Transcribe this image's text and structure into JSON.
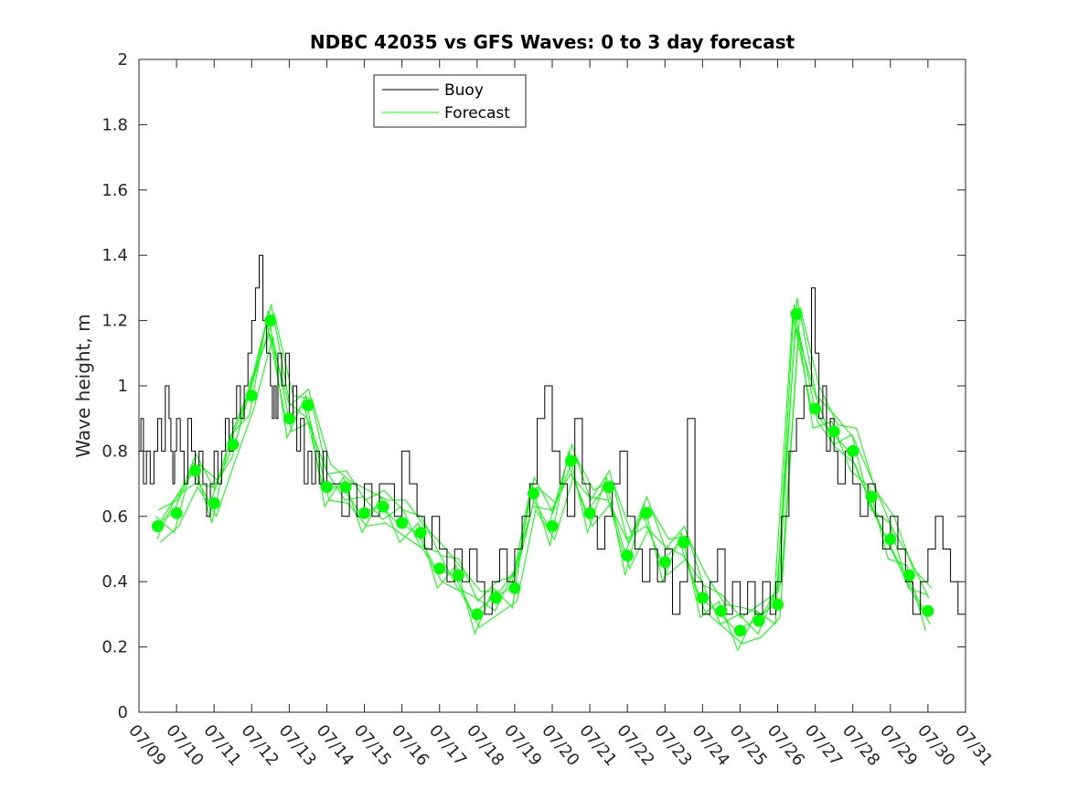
{
  "chart_data": {
    "type": "line",
    "title": "NDBC 42035 vs GFS Waves: 0 to 3 day forecast",
    "xlabel": "",
    "ylabel": "Wave height, m",
    "xlim": [
      0,
      22
    ],
    "ylim": [
      0,
      2
    ],
    "yticks": [
      0,
      0.2,
      0.4,
      0.6,
      0.8,
      1,
      1.2,
      1.4,
      1.6,
      1.8,
      2
    ],
    "ytick_labels": [
      "0",
      "0.2",
      "0.4",
      "0.6",
      "0.8",
      "1",
      "1.2",
      "1.4",
      "1.6",
      "1.8",
      "2"
    ],
    "xtick_labels": [
      "07/09",
      "07/10",
      "07/11",
      "07/12",
      "07/13",
      "07/14",
      "07/15",
      "07/16",
      "07/17",
      "07/18",
      "07/19",
      "07/20",
      "07/21",
      "07/22",
      "07/23",
      "07/24",
      "07/25",
      "07/26",
      "07/27",
      "07/28",
      "07/29",
      "07/30",
      "07/31"
    ],
    "grid": false,
    "legend_position": "top-left",
    "colors": {
      "buoy": "#000000",
      "forecast": "#00ff00"
    },
    "series": [
      {
        "name": "Buoy",
        "style": "stairs",
        "x": [
          0,
          0.05,
          0.12,
          0.2,
          0.3,
          0.4,
          0.5,
          0.6,
          0.7,
          0.8,
          0.85,
          0.9,
          0.95,
          1.0,
          1.1,
          1.2,
          1.3,
          1.4,
          1.5,
          1.6,
          1.7,
          1.8,
          1.9,
          2.0,
          2.1,
          2.2,
          2.3,
          2.4,
          2.5,
          2.6,
          2.7,
          2.8,
          2.9,
          3.0,
          3.1,
          3.2,
          3.3,
          3.4,
          3.5,
          3.55,
          3.6,
          3.65,
          3.7,
          3.8,
          3.9,
          4.0,
          4.1,
          4.2,
          4.3,
          4.4,
          4.5,
          4.6,
          4.7,
          4.8,
          4.9,
          5.0,
          5.2,
          5.4,
          5.6,
          5.8,
          6.0,
          6.2,
          6.4,
          6.6,
          6.8,
          7.0,
          7.2,
          7.4,
          7.6,
          7.8,
          8.0,
          8.2,
          8.4,
          8.6,
          8.8,
          9.0,
          9.2,
          9.4,
          9.6,
          9.8,
          10.0,
          10.2,
          10.4,
          10.6,
          10.8,
          11.0,
          11.2,
          11.4,
          11.6,
          11.8,
          12.0,
          12.2,
          12.4,
          12.6,
          12.8,
          13.0,
          13.2,
          13.4,
          13.6,
          13.8,
          14.0,
          14.2,
          14.4,
          14.6,
          14.8,
          15.0,
          15.2,
          15.4,
          15.6,
          15.8,
          16.0,
          16.2,
          16.4,
          16.6,
          16.8,
          16.95,
          17.1,
          17.3,
          17.5,
          17.7,
          17.9,
          18.0,
          18.1,
          18.2,
          18.3,
          18.4,
          18.5,
          18.6,
          18.8,
          19.0,
          19.2,
          19.4,
          19.6,
          19.8,
          20.0,
          20.2,
          20.4,
          20.6,
          20.8,
          21.0,
          21.2,
          21.4,
          21.6,
          21.8,
          22.0
        ],
        "values": [
          0.8,
          0.9,
          0.7,
          0.8,
          0.7,
          0.8,
          0.9,
          0.8,
          1.0,
          0.9,
          0.8,
          0.7,
          0.8,
          0.9,
          0.8,
          0.7,
          0.9,
          0.8,
          0.7,
          0.8,
          0.7,
          0.6,
          0.7,
          0.8,
          0.7,
          0.8,
          0.9,
          0.8,
          0.9,
          1.0,
          0.9,
          1.0,
          1.1,
          1.2,
          1.3,
          1.4,
          1.2,
          1.1,
          1.0,
          0.9,
          1.0,
          0.9,
          1.1,
          1.0,
          1.1,
          0.9,
          1.0,
          0.8,
          0.9,
          0.7,
          0.8,
          0.7,
          0.8,
          0.7,
          0.8,
          0.7,
          0.7,
          0.6,
          0.7,
          0.6,
          0.7,
          0.6,
          0.7,
          0.7,
          0.6,
          0.8,
          0.7,
          0.6,
          0.5,
          0.6,
          0.5,
          0.4,
          0.5,
          0.4,
          0.5,
          0.4,
          0.3,
          0.4,
          0.5,
          0.4,
          0.5,
          0.6,
          0.7,
          0.9,
          1.0,
          0.8,
          0.7,
          0.6,
          0.9,
          0.7,
          0.6,
          0.5,
          0.6,
          0.7,
          0.8,
          0.6,
          0.5,
          0.4,
          0.5,
          0.4,
          0.5,
          0.3,
          0.4,
          0.9,
          0.4,
          0.3,
          0.4,
          0.5,
          0.3,
          0.4,
          0.3,
          0.4,
          0.3,
          0.4,
          0.3,
          0.4,
          0.6,
          0.8,
          0.9,
          1.0,
          1.3,
          1.1,
          0.9,
          1.0,
          0.8,
          0.9,
          0.8,
          0.7,
          0.8,
          0.7,
          0.6,
          0.7,
          0.6,
          0.5,
          0.6,
          0.5,
          0.4,
          0.3,
          0.4,
          0.5,
          0.6,
          0.5,
          0.4,
          0.3,
          0.4
        ]
      },
      {
        "name": "Forecast",
        "style": "markers",
        "x": [
          0.5,
          1.0,
          1.5,
          2.0,
          2.5,
          3.0,
          3.5,
          4.0,
          4.5,
          5.0,
          5.5,
          6.0,
          6.5,
          7.0,
          7.5,
          8.0,
          8.5,
          9.0,
          9.5,
          10.0,
          10.5,
          11.0,
          11.5,
          12.0,
          12.5,
          13.0,
          13.5,
          14.0,
          14.5,
          15.0,
          15.5,
          16.0,
          16.5,
          17.0,
          17.5,
          18.0,
          18.5,
          19.0,
          19.5,
          20.0,
          20.5,
          21.0
        ],
        "values": [
          0.57,
          0.61,
          0.74,
          0.64,
          0.82,
          0.97,
          1.2,
          0.9,
          0.94,
          0.69,
          0.69,
          0.61,
          0.63,
          0.58,
          0.55,
          0.44,
          0.42,
          0.3,
          0.35,
          0.38,
          0.67,
          0.57,
          0.77,
          0.61,
          0.69,
          0.48,
          0.61,
          0.46,
          0.52,
          0.35,
          0.31,
          0.25,
          0.28,
          0.33,
          1.22,
          0.93,
          0.86,
          0.8,
          0.66,
          0.53,
          0.42,
          0.31
        ]
      }
    ]
  }
}
